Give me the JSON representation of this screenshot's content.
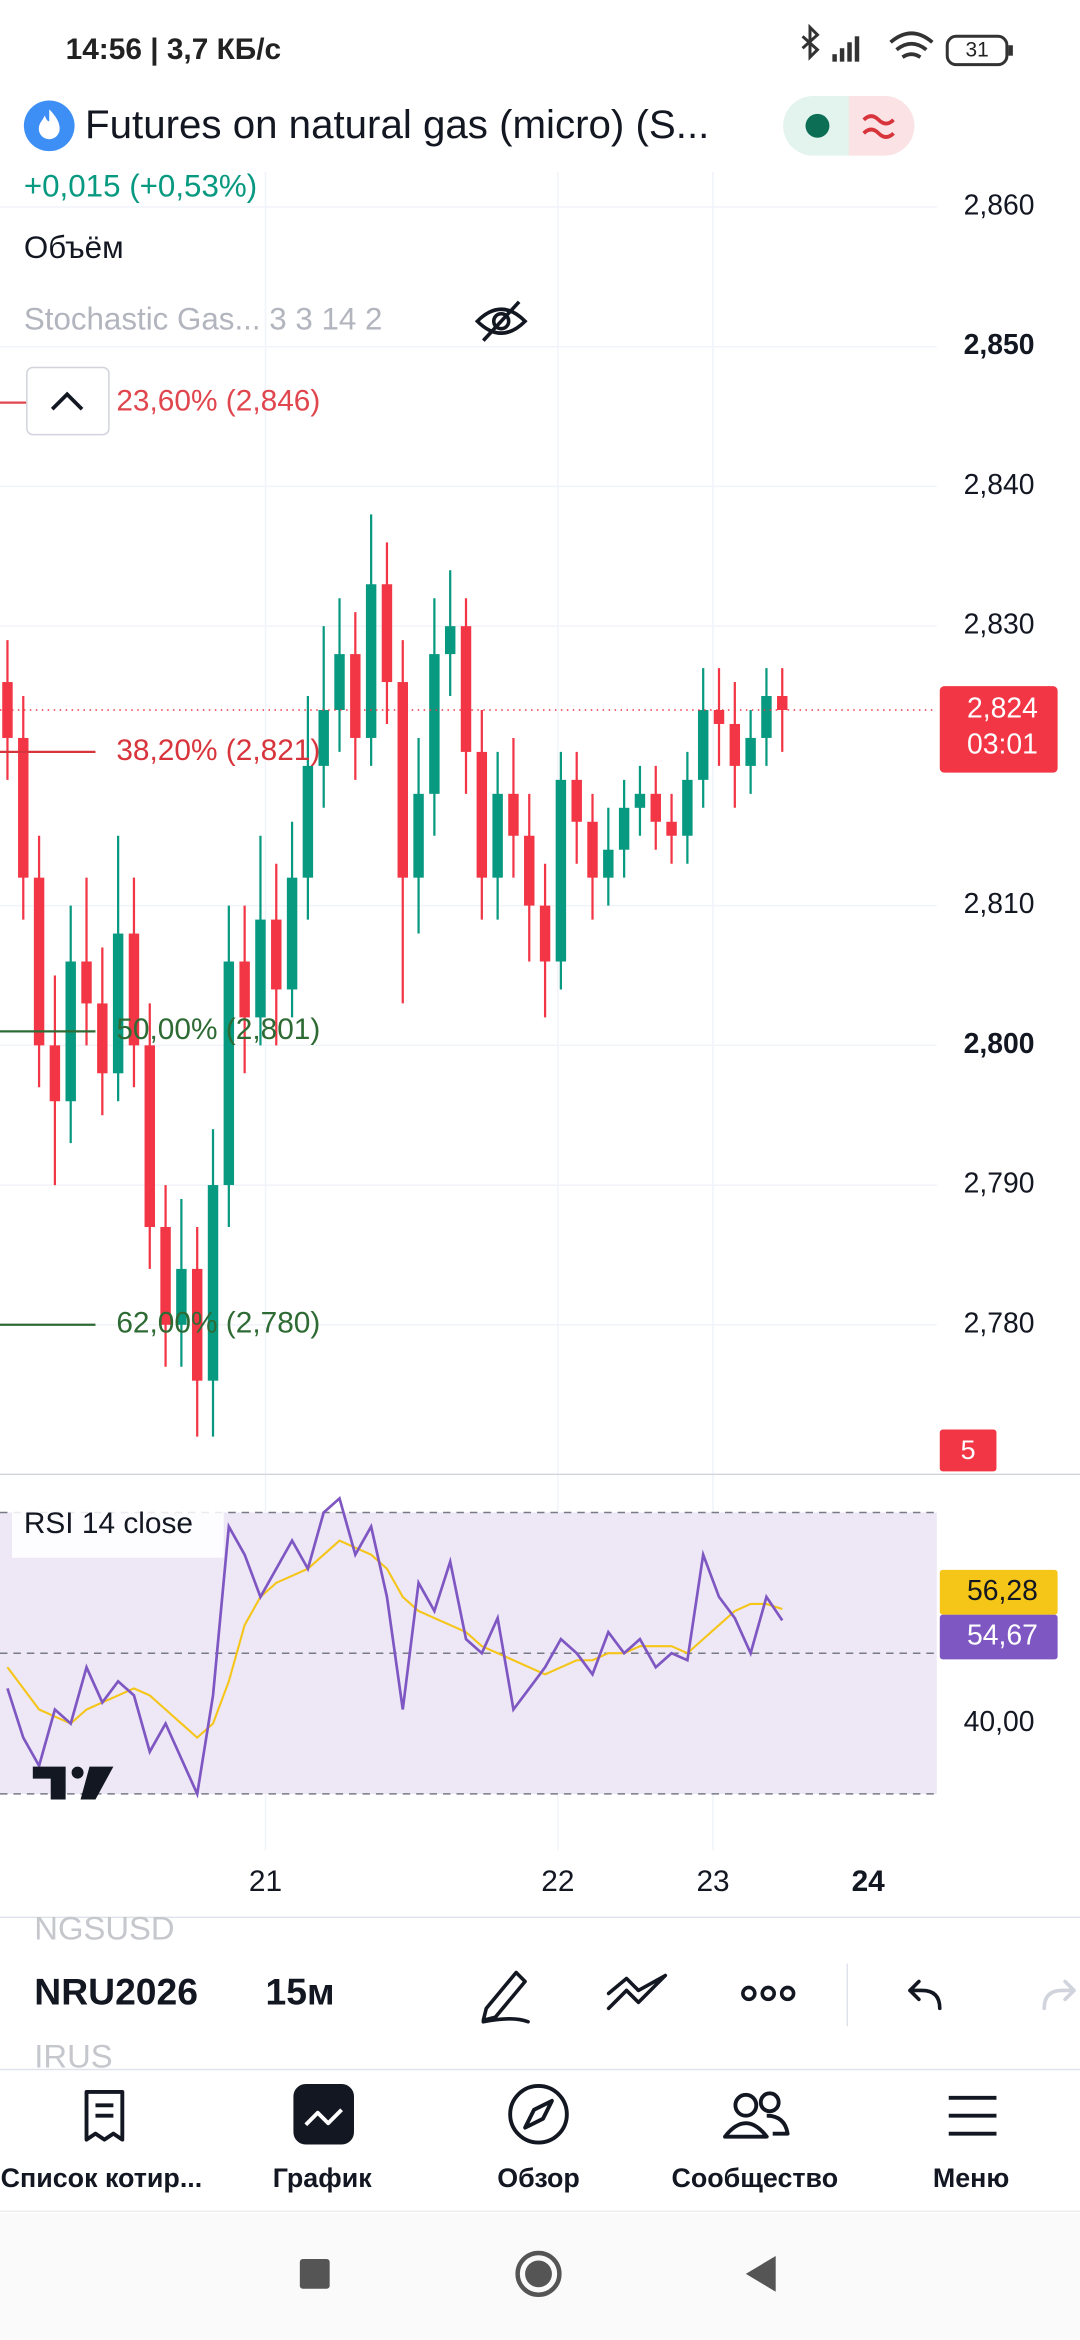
{
  "status_bar": {
    "time_speed": "14:56 | 3,7 КБ/с",
    "battery": "31"
  },
  "header": {
    "title": "Futures on natural gas (micro) (S...",
    "change": "+0,015 (+0,53%)",
    "volume_label": "Объём",
    "indicator": "Stochastic Gas... 3 3 14 2"
  },
  "chart_data": [
    {
      "type": "candlestick",
      "open": [
        2.826,
        2.822,
        2.812,
        2.8,
        2.796,
        2.806,
        2.803,
        2.798,
        2.808,
        2.8,
        2.787,
        2.78,
        2.784,
        2.776,
        2.79,
        2.806,
        2.802,
        2.809,
        2.804,
        2.812,
        2.82,
        2.824,
        2.828,
        2.822,
        2.833,
        2.826,
        2.812,
        2.818,
        2.828,
        2.83,
        2.821,
        2.812,
        2.818,
        2.815,
        2.81,
        2.806,
        2.819,
        2.816,
        2.812,
        2.814,
        2.817,
        2.818,
        2.816,
        2.815,
        2.819,
        2.824,
        2.823,
        2.82,
        2.822,
        2.825
      ],
      "high": [
        2.829,
        2.825,
        2.815,
        2.805,
        2.81,
        2.812,
        2.807,
        2.815,
        2.812,
        2.803,
        2.79,
        2.789,
        2.787,
        2.794,
        2.81,
        2.81,
        2.815,
        2.813,
        2.816,
        2.825,
        2.83,
        2.832,
        2.831,
        2.838,
        2.836,
        2.829,
        2.822,
        2.832,
        2.834,
        2.832,
        2.824,
        2.821,
        2.822,
        2.818,
        2.813,
        2.821,
        2.821,
        2.818,
        2.817,
        2.819,
        2.82,
        2.82,
        2.818,
        2.821,
        2.827,
        2.827,
        2.826,
        2.824,
        2.827,
        2.827
      ],
      "low": [
        2.819,
        2.809,
        2.797,
        2.79,
        2.793,
        2.8,
        2.795,
        2.796,
        2.797,
        2.784,
        2.777,
        2.777,
        2.772,
        2.772,
        2.787,
        2.798,
        2.8,
        2.8,
        2.802,
        2.809,
        2.817,
        2.821,
        2.819,
        2.82,
        2.823,
        2.803,
        2.808,
        2.815,
        2.825,
        2.818,
        2.809,
        2.809,
        2.812,
        2.806,
        2.802,
        2.804,
        2.813,
        2.809,
        2.81,
        2.812,
        2.815,
        2.814,
        2.813,
        2.813,
        2.817,
        2.82,
        2.817,
        2.818,
        2.82,
        2.821
      ],
      "close": [
        2.822,
        2.812,
        2.8,
        2.796,
        2.806,
        2.803,
        2.798,
        2.808,
        2.8,
        2.787,
        2.78,
        2.784,
        2.776,
        2.79,
        2.806,
        2.802,
        2.809,
        2.804,
        2.812,
        2.82,
        2.824,
        2.828,
        2.822,
        2.833,
        2.826,
        2.812,
        2.818,
        2.828,
        2.83,
        2.821,
        2.812,
        2.818,
        2.815,
        2.81,
        2.806,
        2.819,
        2.816,
        2.812,
        2.814,
        2.817,
        2.818,
        2.816,
        2.815,
        2.819,
        2.824,
        2.823,
        2.82,
        2.822,
        2.825,
        2.824
      ],
      "up_color": "#089981",
      "down_color": "#f23645",
      "ylim": [
        2.7693,
        2.8625
      ],
      "yticks": [
        {
          "value": 2.86,
          "label": "2,860"
        },
        {
          "value": 2.85,
          "label": "2,850"
        },
        {
          "value": 2.84,
          "label": "2,840"
        },
        {
          "value": 2.83,
          "label": "2,830"
        },
        {
          "value": 2.81,
          "label": "2,810"
        },
        {
          "value": 2.8,
          "label": "2,800"
        },
        {
          "value": 2.79,
          "label": "2,790"
        },
        {
          "value": 2.78,
          "label": "2,780"
        }
      ],
      "grid": true,
      "annotations": [
        {
          "value": 2.846,
          "label": "23,60% (2,846)",
          "color": "#e0464e"
        },
        {
          "value": 2.821,
          "label": "38,20% (2,821)",
          "color": "#d8343c"
        },
        {
          "value": 2.801,
          "label": "50,00% (2,801)",
          "color": "#2e6b34"
        },
        {
          "value": 2.78,
          "label": "62,00% (2,780)",
          "color": "#2e6b34"
        }
      ],
      "last_price": {
        "value": 2.824,
        "label": "2,824"
      },
      "countdown": "03:01",
      "volume_badge": 5
    },
    {
      "type": "line",
      "series": [
        {
          "name": "RSI 14 close",
          "color": "#7e57c2",
          "values": [
            45,
            38,
            34,
            42,
            40,
            48,
            43,
            46,
            44,
            36,
            40,
            35,
            30,
            44,
            68,
            64,
            58,
            62,
            66,
            62,
            70,
            72,
            64,
            68,
            58,
            42,
            60,
            56,
            63,
            52,
            50,
            55,
            42,
            45,
            48,
            52,
            50,
            47,
            53,
            50,
            52,
            48,
            50,
            49,
            64,
            58,
            55,
            50,
            58,
            54.67
          ],
          "end_label": "54,67"
        },
        {
          "color": "#f5c518",
          "values": [
            48,
            45,
            42,
            41,
            40,
            42,
            43,
            44,
            45,
            44,
            42,
            40,
            38,
            40,
            46,
            54,
            58,
            60,
            61,
            62,
            64,
            66,
            65,
            64,
            62,
            58,
            56,
            55,
            54,
            53,
            51,
            50,
            49,
            48,
            47,
            48,
            49,
            49,
            50,
            50,
            51,
            51,
            51,
            50,
            52,
            54,
            56,
            57,
            57,
            56.28
          ],
          "end_label": "56,28"
        }
      ],
      "ylim": [
        22,
        75
      ],
      "yticks": [
        {
          "value": 40,
          "label": "40,00"
        }
      ],
      "bands": [
        30,
        50,
        70
      ],
      "band_fill": "#ede7f6",
      "x_labels": [
        "21",
        "22",
        "23",
        "24"
      ]
    }
  ],
  "toolbar": {
    "prev_symbol": "NGSUSD",
    "symbol": "NRU2026",
    "next_symbol": "IRUS",
    "interval": "15м"
  },
  "nav": [
    "Список котир...",
    "График",
    "Обзор",
    "Сообщество",
    "Меню"
  ]
}
